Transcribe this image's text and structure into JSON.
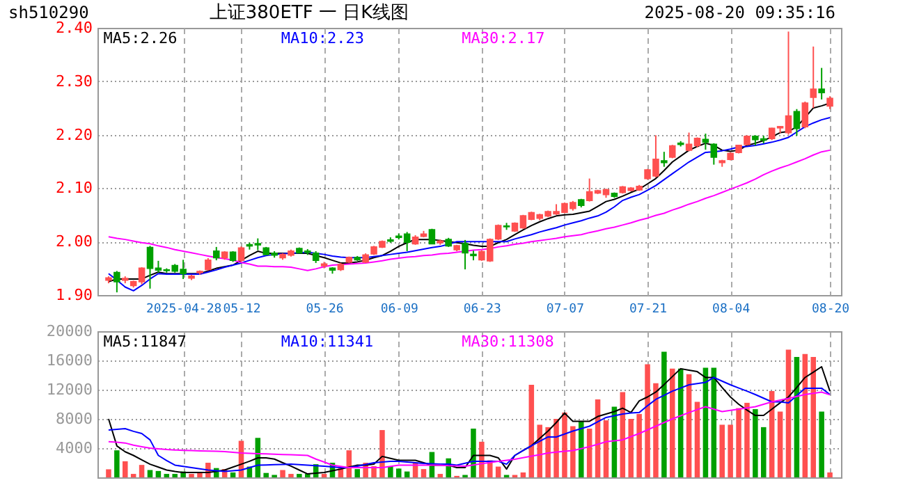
{
  "chart_data": [
    {
      "type": "candlestick",
      "title": "上证380ETF 一 日K线图",
      "annotations": [
        "sh510290",
        "2025-08-20 09:35:16"
      ],
      "grid": true,
      "categories": [
        null,
        null,
        null,
        null,
        null,
        null,
        null,
        null,
        null,
        "2025-04-28",
        null,
        null,
        null,
        null,
        null,
        null,
        "05-12",
        null,
        null,
        null,
        null,
        null,
        null,
        null,
        null,
        null,
        "05-26",
        null,
        null,
        null,
        null,
        null,
        null,
        null,
        null,
        "06-09",
        null,
        null,
        null,
        null,
        null,
        null,
        null,
        null,
        null,
        "06-23",
        null,
        null,
        null,
        null,
        null,
        null,
        null,
        null,
        null,
        "07-07",
        null,
        null,
        null,
        null,
        null,
        null,
        null,
        null,
        null,
        "07-21",
        null,
        null,
        null,
        null,
        null,
        null,
        null,
        null,
        null,
        "08-04",
        null,
        null,
        null,
        null,
        null,
        null,
        null,
        null,
        null,
        null,
        null,
        "08-20"
      ],
      "ylim": [
        1.9,
        2.4
      ],
      "yticks": [
        {
          "value": 1.9,
          "label": "1.90"
        },
        {
          "value": 2.0,
          "label": "2.00"
        },
        {
          "value": 2.1,
          "label": "2.10"
        },
        {
          "value": 2.2,
          "label": "2.20"
        },
        {
          "value": 2.3,
          "label": "2.30"
        },
        {
          "value": 2.4,
          "label": "2.40"
        }
      ],
      "ohlc": [
        [
          1.928,
          1.935,
          1.922,
          1.932
        ],
        [
          1.942,
          1.945,
          1.905,
          1.925
        ],
        [
          1.928,
          1.935,
          1.922,
          1.931
        ],
        [
          1.918,
          1.927,
          1.914,
          1.925
        ],
        [
          1.925,
          1.952,
          1.92,
          1.95
        ],
        [
          1.989,
          1.992,
          1.912,
          1.95
        ],
        [
          1.95,
          1.964,
          1.942,
          1.947
        ],
        [
          1.947,
          1.95,
          1.942,
          1.946
        ],
        [
          1.955,
          1.958,
          1.942,
          1.945
        ],
        [
          1.948,
          1.966,
          1.93,
          1.94
        ],
        [
          1.932,
          1.938,
          1.928,
          1.935
        ],
        [
          1.942,
          1.946,
          1.938,
          1.944
        ],
        [
          1.948,
          1.969,
          1.946,
          1.965
        ],
        [
          1.982,
          1.99,
          1.965,
          1.97
        ],
        [
          1.97,
          1.982,
          1.966,
          1.98
        ],
        [
          1.98,
          1.982,
          1.962,
          1.965
        ],
        [
          1.965,
          1.991,
          1.962,
          1.988
        ],
        [
          1.994,
          1.998,
          1.985,
          1.992
        ],
        [
          1.996,
          2.006,
          1.984,
          1.994
        ],
        [
          1.988,
          1.99,
          1.975,
          1.976
        ],
        [
          1.978,
          1.982,
          1.97,
          1.975
        ],
        [
          1.97,
          1.978,
          1.966,
          1.976
        ],
        [
          1.975,
          1.985,
          1.972,
          1.982
        ],
        [
          1.987,
          1.989,
          1.978,
          1.979
        ],
        [
          1.982,
          1.986,
          1.975,
          1.98
        ],
        [
          1.978,
          1.982,
          1.96,
          1.965
        ],
        [
          1.955,
          1.962,
          1.95,
          1.958
        ],
        [
          1.95,
          1.952,
          1.94,
          1.947
        ],
        [
          1.948,
          1.96,
          1.945,
          1.957
        ],
        [
          1.962,
          1.972,
          1.96,
          1.97
        ],
        [
          1.97,
          1.973,
          1.964,
          1.966
        ],
        [
          1.962,
          1.978,
          1.96,
          1.975
        ],
        [
          1.977,
          1.992,
          1.975,
          1.99
        ],
        [
          1.99,
          2.002,
          1.988,
          2.0
        ],
        [
          2.003,
          2.008,
          1.998,
          2.001
        ],
        [
          2.01,
          2.015,
          2.004,
          2.008
        ],
        [
          2.014,
          2.018,
          1.982,
          1.999
        ],
        [
          1.996,
          2.012,
          1.994,
          2.008
        ],
        [
          2.01,
          2.02,
          2.008,
          2.014
        ],
        [
          2.022,
          2.024,
          1.996,
          1.996
        ],
        [
          1.998,
          2.004,
          1.994,
          2.001
        ],
        [
          2.004,
          2.007,
          1.99,
          1.992
        ],
        [
          1.985,
          1.994,
          1.982,
          1.992
        ],
        [
          1.996,
          2.003,
          1.948,
          1.979
        ],
        [
          1.976,
          1.983,
          1.965,
          1.974
        ],
        [
          1.966,
          1.984,
          1.964,
          1.981
        ],
        [
          1.964,
          2.006,
          1.962,
          2.004
        ],
        [
          2.005,
          2.032,
          2.003,
          2.03
        ],
        [
          2.029,
          2.035,
          2.022,
          2.028
        ],
        [
          2.02,
          2.036,
          2.018,
          2.034
        ],
        [
          2.026,
          2.05,
          2.024,
          2.048
        ],
        [
          2.042,
          2.056,
          2.04,
          2.054
        ],
        [
          2.044,
          2.052,
          2.04,
          2.05
        ],
        [
          2.048,
          2.058,
          2.046,
          2.056
        ],
        [
          2.052,
          2.07,
          2.05,
          2.056
        ],
        [
          2.055,
          2.073,
          2.053,
          2.071
        ],
        [
          2.062,
          2.076,
          2.058,
          2.073
        ],
        [
          2.078,
          2.08,
          2.064,
          2.068
        ],
        [
          2.077,
          2.118,
          2.075,
          2.093
        ],
        [
          2.091,
          2.097,
          2.089,
          2.095
        ],
        [
          2.088,
          2.099,
          2.082,
          2.097
        ],
        [
          2.09,
          2.092,
          2.082,
          2.085
        ],
        [
          2.092,
          2.104,
          2.09,
          2.102
        ],
        [
          2.096,
          2.102,
          2.094,
          2.1
        ],
        [
          2.097,
          2.106,
          2.095,
          2.103
        ],
        [
          2.118,
          2.136,
          2.116,
          2.134
        ],
        [
          2.123,
          2.199,
          2.12,
          2.154
        ],
        [
          2.151,
          2.168,
          2.14,
          2.148
        ],
        [
          2.158,
          2.181,
          2.156,
          2.179
        ],
        [
          2.184,
          2.188,
          2.178,
          2.182
        ],
        [
          2.171,
          2.204,
          2.169,
          2.182
        ],
        [
          2.18,
          2.195,
          2.176,
          2.193
        ],
        [
          2.191,
          2.202,
          2.172,
          2.186
        ],
        [
          2.182,
          2.184,
          2.144,
          2.158
        ],
        [
          2.148,
          2.153,
          2.14,
          2.151
        ],
        [
          2.154,
          2.167,
          2.152,
          2.165
        ],
        [
          2.167,
          2.181,
          2.165,
          2.18
        ],
        [
          2.182,
          2.199,
          2.18,
          2.197
        ],
        [
          2.197,
          2.199,
          2.18,
          2.191
        ],
        [
          2.192,
          2.198,
          2.184,
          2.19
        ],
        [
          2.193,
          2.213,
          2.19,
          2.212
        ],
        [
          2.213,
          2.216,
          2.203,
          2.215
        ],
        [
          2.204,
          2.393,
          2.2,
          2.235
        ],
        [
          2.243,
          2.248,
          2.198,
          2.212
        ],
        [
          2.215,
          2.262,
          2.212,
          2.259
        ],
        [
          2.27,
          2.365,
          2.25,
          2.285
        ],
        [
          2.285,
          2.325,
          2.266,
          2.279
        ],
        [
          2.254,
          2.272,
          2.248,
          2.268
        ]
      ],
      "colors": [
        "#ff5050",
        "#00a000",
        "#ff5050",
        "#ff5050",
        "#ff5050",
        "#00a000",
        "#00a000",
        "#00a000",
        "#00a000",
        "#00a000",
        "#ff5050",
        "#ff5050",
        "#ff5050",
        "#00a000",
        "#ff5050",
        "#00a000",
        "#ff5050",
        "#00a000",
        "#00a000",
        "#00a000",
        "#00a000",
        "#ff5050",
        "#ff5050",
        "#00a000",
        "#00a000",
        "#00a000",
        "#ff5050",
        "#00a000",
        "#ff5050",
        "#ff5050",
        "#00a000",
        "#ff5050",
        "#ff5050",
        "#ff5050",
        "#00a000",
        "#00a000",
        "#00a000",
        "#ff5050",
        "#ff5050",
        "#00a000",
        "#ff5050",
        "#00a000",
        "#ff5050",
        "#00a000",
        "#00a000",
        "#ff5050",
        "#ff5050",
        "#ff5050",
        "#00a000",
        "#ff5050",
        "#ff5050",
        "#ff5050",
        "#ff5050",
        "#ff5050",
        "#ff5050",
        "#ff5050",
        "#ff5050",
        "#00a000",
        "#ff5050",
        "#ff5050",
        "#ff5050",
        "#00a000",
        "#ff5050",
        "#ff5050",
        "#ff5050",
        "#ff5050",
        "#ff5050",
        "#00a000",
        "#ff5050",
        "#00a000",
        "#ff5050",
        "#ff5050",
        "#00a000",
        "#00a000",
        "#ff5050",
        "#ff5050",
        "#ff5050",
        "#ff5050",
        "#00a000",
        "#00a000",
        "#ff5050",
        "#ff5050",
        "#ff5050",
        "#00a000",
        "#ff5050",
        "#ff5050",
        "#00a000",
        "#ff5050"
      ],
      "series": [
        {
          "type": "line",
          "name": "MA5:2.26",
          "color": "#000000",
          "values": [
            1.925,
            1.93,
            1.93,
            1.93,
            1.93,
            1.937,
            1.943,
            1.94,
            1.94,
            1.94,
            1.94,
            1.94,
            1.945,
            1.95,
            1.953,
            1.956,
            1.965,
            1.974,
            1.982,
            1.978,
            1.978,
            1.978,
            1.978,
            1.978,
            1.978,
            1.974,
            1.97,
            1.965,
            1.96,
            1.96,
            1.962,
            1.965,
            1.97,
            1.974,
            1.982,
            1.991,
            1.998,
            2.004,
            2.004,
            2.004,
            2.002,
            2.0,
            1.998,
            1.996,
            1.993,
            1.991,
            1.991,
            1.998,
            2.004,
            2.013,
            2.022,
            2.03,
            2.037,
            2.043,
            2.048,
            2.05,
            2.051,
            2.054,
            2.057,
            2.066,
            2.075,
            2.079,
            2.085,
            2.092,
            2.098,
            2.108,
            2.118,
            2.133,
            2.149,
            2.16,
            2.171,
            2.178,
            2.184,
            2.18,
            2.171,
            2.169,
            2.171,
            2.18,
            2.184,
            2.189,
            2.196,
            2.204,
            2.206,
            2.215,
            2.232,
            2.25,
            2.254,
            2.259
          ]
        },
        {
          "type": "line",
          "name": "MA10:2.23",
          "color": "#0000ff",
          "values": [
            1.94,
            1.928,
            1.915,
            1.908,
            1.918,
            1.93,
            1.94,
            1.939,
            1.939,
            1.939,
            1.939,
            1.939,
            1.943,
            1.947,
            1.952,
            1.956,
            1.96,
            1.965,
            1.97,
            1.974,
            1.976,
            1.977,
            1.978,
            1.979,
            1.98,
            1.978,
            1.976,
            1.973,
            1.971,
            1.97,
            1.97,
            1.97,
            1.972,
            1.974,
            1.976,
            1.978,
            1.98,
            1.983,
            1.986,
            1.989,
            1.991,
            1.995,
            2.0,
            2.0,
            2.0,
            2.0,
            2.0,
            2.0,
            2.0,
            2.005,
            2.009,
            2.013,
            2.018,
            2.022,
            2.026,
            2.031,
            2.035,
            2.039,
            2.044,
            2.048,
            2.055,
            2.065,
            2.077,
            2.083,
            2.088,
            2.096,
            2.105,
            2.116,
            2.127,
            2.138,
            2.149,
            2.158,
            2.167,
            2.168,
            2.17,
            2.173,
            2.177,
            2.178,
            2.18,
            2.183,
            2.186,
            2.19,
            2.195,
            2.205,
            2.215,
            2.222,
            2.228,
            2.232
          ]
        },
        {
          "type": "line",
          "name": "MA30:2.17",
          "color": "#ff00ff",
          "values": [
            2.009,
            2.006,
            2.004,
            2.001,
            1.998,
            1.996,
            1.992,
            1.989,
            1.985,
            1.982,
            1.979,
            1.976,
            1.973,
            1.97,
            1.968,
            1.965,
            1.961,
            1.958,
            1.954,
            1.954,
            1.953,
            1.953,
            1.952,
            1.949,
            1.946,
            1.949,
            1.953,
            1.956,
            1.957,
            1.958,
            1.959,
            1.96,
            1.962,
            1.964,
            1.967,
            1.969,
            1.971,
            1.972,
            1.974,
            1.975,
            1.977,
            1.978,
            1.98,
            1.982,
            1.984,
            1.985,
            1.987,
            1.99,
            1.992,
            1.995,
            1.997,
            2.0,
            2.002,
            2.004,
            2.006,
            2.009,
            2.011,
            2.013,
            2.017,
            2.02,
            2.024,
            2.027,
            2.031,
            2.035,
            2.04,
            2.044,
            2.049,
            2.053,
            2.059,
            2.064,
            2.07,
            2.075,
            2.081,
            2.086,
            2.092,
            2.098,
            2.104,
            2.11,
            2.117,
            2.125,
            2.132,
            2.138,
            2.143,
            2.149,
            2.155,
            2.162,
            2.168,
            2.171
          ]
        }
      ]
    },
    {
      "type": "bar",
      "grid": true,
      "tick_labels": "y",
      "categories": [
        null,
        null,
        null,
        null,
        null,
        null,
        null,
        null,
        null,
        null,
        null,
        null,
        null,
        null,
        null,
        null,
        null,
        null,
        null,
        null,
        null,
        null,
        null,
        null,
        null,
        null,
        null,
        null,
        null,
        null,
        null,
        null,
        null,
        null,
        null,
        null,
        null,
        null,
        null,
        null,
        null,
        null,
        null,
        null,
        null,
        null,
        null,
        null,
        null,
        null,
        null,
        null,
        null,
        null,
        null,
        null,
        null,
        null,
        null,
        null,
        null,
        null,
        null,
        null,
        null,
        null,
        null,
        null,
        null,
        null,
        null,
        null,
        null,
        null,
        null,
        null,
        null,
        null,
        null,
        null,
        null,
        null,
        null,
        null,
        null,
        null,
        null,
        null
      ],
      "ylim": [
        0,
        20000
      ],
      "yticks": [
        4000,
        8000,
        12000,
        16000,
        20000
      ],
      "series": [
        {
          "type": "bar",
          "values": [
            1100,
            3700,
            2200,
            470,
            1700,
            1000,
            870,
            470,
            470,
            800,
            470,
            670,
            2000,
            1270,
            1130,
            670,
            5000,
            1470,
            5400,
            600,
            330,
            1000,
            470,
            470,
            470,
            1800,
            470,
            2000,
            1300,
            3700,
            1130,
            2000,
            1530,
            6470,
            1530,
            1200,
            800,
            2000,
            1130,
            3470,
            470,
            2600,
            200,
            330,
            6670,
            4870,
            2330,
            1470,
            330,
            330,
            670,
            12670,
            7200,
            6870,
            8000,
            8870,
            7000,
            7670,
            6670,
            10670,
            7800,
            9670,
            11670,
            8000,
            8670,
            15470,
            12870,
            17200,
            14870,
            14870,
            14130,
            10330,
            15000,
            15000,
            7200,
            7200,
            9470,
            10200,
            9330,
            6870,
            11800,
            9000,
            17470,
            16470,
            16870,
            16470,
            9000,
            670
          ],
          "colors": [
            "#ff5050",
            "#00a000",
            "#ff5050",
            "#ff5050",
            "#ff5050",
            "#00a000",
            "#00a000",
            "#00a000",
            "#00a000",
            "#00a000",
            "#ff5050",
            "#ff5050",
            "#ff5050",
            "#00a000",
            "#ff5050",
            "#00a000",
            "#ff5050",
            "#00a000",
            "#00a000",
            "#00a000",
            "#00a000",
            "#ff5050",
            "#ff5050",
            "#00a000",
            "#00a000",
            "#00a000",
            "#ff5050",
            "#00a000",
            "#ff5050",
            "#ff5050",
            "#00a000",
            "#ff5050",
            "#ff5050",
            "#ff5050",
            "#00a000",
            "#00a000",
            "#00a000",
            "#ff5050",
            "#ff5050",
            "#00a000",
            "#ff5050",
            "#00a000",
            "#ff5050",
            "#00a000",
            "#00a000",
            "#ff5050",
            "#ff5050",
            "#ff5050",
            "#00a000",
            "#ff5050",
            "#ff5050",
            "#ff5050",
            "#ff5050",
            "#ff5050",
            "#ff5050",
            "#ff5050",
            "#ff5050",
            "#00a000",
            "#ff5050",
            "#ff5050",
            "#ff5050",
            "#00a000",
            "#ff5050",
            "#ff5050",
            "#ff5050",
            "#ff5050",
            "#ff5050",
            "#00a000",
            "#ff5050",
            "#00a000",
            "#ff5050",
            "#ff5050",
            "#00a000",
            "#00a000",
            "#ff5050",
            "#ff5050",
            "#ff5050",
            "#ff5050",
            "#00a000",
            "#00a000",
            "#ff5050",
            "#ff5050",
            "#ff5050",
            "#00a000",
            "#ff5050",
            "#ff5050",
            "#00a000",
            "#ff5050"
          ]
        },
        {
          "type": "line",
          "name": "MA5:11847",
          "color": "#000000",
          "values": [
            8000,
            4300,
            3500,
            3000,
            2400,
            1800,
            1400,
            1000,
            800,
            670,
            670,
            670,
            670,
            800,
            1000,
            1400,
            1800,
            2200,
            2670,
            2670,
            2500,
            2000,
            1530,
            1000,
            470,
            570,
            670,
            900,
            1130,
            1400,
            1670,
            1670,
            1800,
            2870,
            2600,
            2330,
            2330,
            2330,
            2000,
            1670,
            1670,
            1670,
            1330,
            1330,
            3000,
            3000,
            3000,
            2670,
            1130,
            3000,
            3670,
            4330,
            5330,
            6330,
            7500,
            8800,
            7670,
            7670,
            7670,
            8330,
            8670,
            9000,
            9470,
            8870,
            10470,
            11000,
            11670,
            12700,
            13800,
            14870,
            14670,
            14470,
            13670,
            13670,
            12300,
            11000,
            10000,
            9200,
            8470,
            8470,
            9330,
            10200,
            11000,
            12300,
            13670,
            14400,
            15140,
            11800
          ]
        },
        {
          "type": "line",
          "name": "MA10:11341",
          "color": "#0000ff",
          "values": [
            6470,
            6570,
            6670,
            6300,
            6000,
            5130,
            3000,
            2300,
            1670,
            1500,
            1330,
            1170,
            1000,
            900,
            800,
            900,
            1000,
            1330,
            1670,
            1700,
            1730,
            1770,
            1800,
            1730,
            1670,
            1600,
            1530,
            1430,
            1330,
            1330,
            1530,
            1770,
            2000,
            2100,
            2200,
            2200,
            2100,
            2000,
            1900,
            1850,
            1800,
            1800,
            1670,
            1930,
            2200,
            2200,
            2200,
            2200,
            1800,
            3000,
            3670,
            4330,
            4930,
            5530,
            5530,
            5930,
            6330,
            6670,
            7000,
            7600,
            8200,
            8430,
            8670,
            8800,
            8870,
            9800,
            10670,
            11230,
            11800,
            12230,
            12670,
            12830,
            13000,
            13670,
            13170,
            12670,
            12230,
            11800,
            11330,
            10830,
            10330,
            10330,
            10200,
            11200,
            12200,
            12200,
            12200,
            11340
          ]
        },
        {
          "type": "line",
          "name": "MA30:11308",
          "color": "#ff00ff",
          "values": [
            4870,
            4800,
            4700,
            4400,
            4200,
            4000,
            3900,
            3800,
            3750,
            3700,
            3670,
            3630,
            3600,
            3570,
            3530,
            3430,
            3330,
            3290,
            3250,
            3210,
            3170,
            3130,
            3090,
            3050,
            3000,
            2500,
            2100,
            1670,
            1500,
            1330,
            1330,
            1330,
            1330,
            1330,
            1500,
            1670,
            1670,
            1670,
            1670,
            1670,
            1670,
            1600,
            1560,
            1530,
            1700,
            1870,
            2030,
            2200,
            2330,
            2470,
            2700,
            2900,
            3100,
            3330,
            3450,
            3560,
            3670,
            3930,
            4200,
            4530,
            4870,
            5000,
            5130,
            5570,
            6000,
            6500,
            7000,
            7500,
            8000,
            8430,
            8870,
            9270,
            9670,
            9330,
            9000,
            9170,
            9330,
            9500,
            9670,
            10000,
            10330,
            10570,
            10800,
            11070,
            11330,
            11500,
            11670,
            11300
          ]
        }
      ]
    }
  ]
}
